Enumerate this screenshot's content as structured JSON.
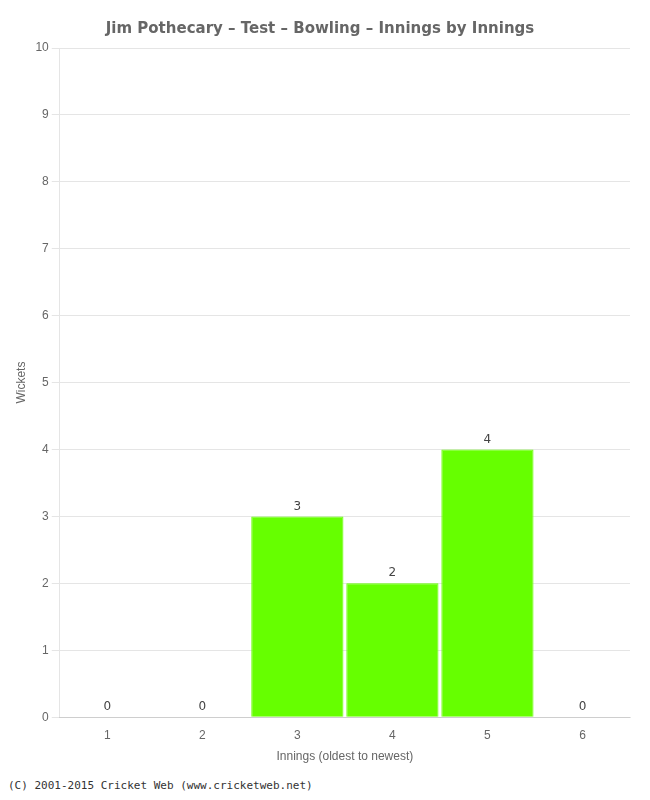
{
  "chart_data": {
    "type": "bar",
    "title": "Jim Pothecary – Test – Bowling – Innings by Innings",
    "x_label": "Innings (oldest to newest)",
    "y_label": "Wickets",
    "categories": [
      "1",
      "2",
      "3",
      "4",
      "5",
      "6"
    ],
    "values": [
      0,
      0,
      3,
      2,
      4,
      0
    ],
    "color": "#66ff00",
    "ylim": [
      0,
      10
    ],
    "yticks": [
      0,
      1,
      2,
      3,
      4,
      5,
      6,
      7,
      8,
      9,
      10
    ],
    "grid": true,
    "data_labels": true,
    "annotations": [
      "(C) 2001-2015 Cricket Web (www.cricketweb.net)"
    ]
  }
}
